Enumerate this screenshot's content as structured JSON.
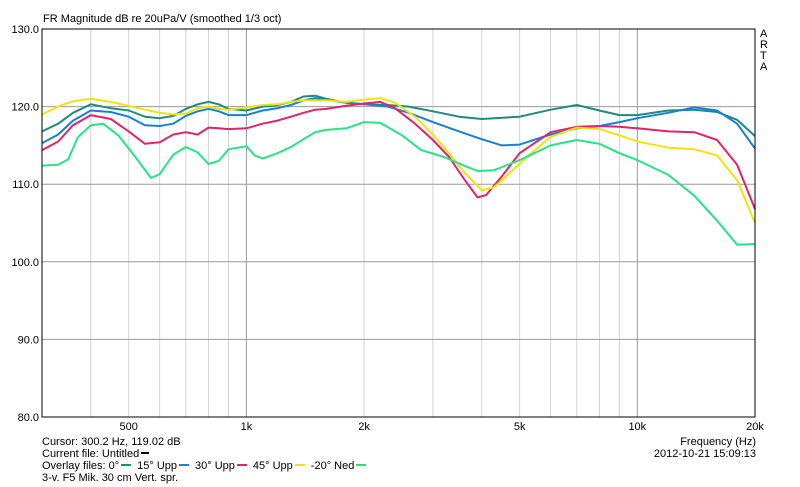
{
  "title": "FR Magnitude dB re 20uPa/V (smoothed 1/3 oct)",
  "brand": [
    "A",
    "R",
    "T",
    "A"
  ],
  "cursor_text": "Cursor: 300.2 Hz, 119.02 dB",
  "current_file_text": "Current file: Untitled",
  "overlay_label": "Overlay files:",
  "comment": "3-v. F5 Mik. 30 cm Vert. spr.",
  "x_axis_label": "Frequency (Hz)",
  "timestamp": "2012-10-21  15:09:13",
  "chart_data": {
    "type": "line",
    "title": "FR Magnitude dB re 20uPa/V (smoothed 1/3 oct)",
    "xlabel": "Frequency (Hz)",
    "ylabel": "",
    "xscale": "log",
    "xlim": [
      300,
      20000
    ],
    "ylim": [
      80,
      130
    ],
    "grid": true,
    "xticks": [
      {
        "value": 500,
        "label": "500"
      },
      {
        "value": 1000,
        "label": "1k"
      },
      {
        "value": 2000,
        "label": "2k"
      },
      {
        "value": 5000,
        "label": "5k"
      },
      {
        "value": 10000,
        "label": "10k"
      },
      {
        "value": 20000,
        "label": "20k"
      }
    ],
    "yticks": [
      {
        "value": 80,
        "label": "80.0"
      },
      {
        "value": 90,
        "label": "90.0"
      },
      {
        "value": 100,
        "label": "100.0"
      },
      {
        "value": 110,
        "label": "110.0"
      },
      {
        "value": 120,
        "label": "120.0"
      },
      {
        "value": 130,
        "label": "130.0"
      }
    ],
    "series": [
      {
        "name": "0°",
        "color": "#1f8b7d",
        "points": [
          [
            300,
            116.8
          ],
          [
            330,
            117.8
          ],
          [
            360,
            119.2
          ],
          [
            400,
            120.3
          ],
          [
            450,
            119.8
          ],
          [
            500,
            119.5
          ],
          [
            550,
            118.7
          ],
          [
            600,
            118.5
          ],
          [
            650,
            118.8
          ],
          [
            700,
            119.7
          ],
          [
            750,
            120.3
          ],
          [
            800,
            120.6
          ],
          [
            850,
            120.3
          ],
          [
            900,
            119.7
          ],
          [
            1000,
            119.5
          ],
          [
            1100,
            120.0
          ],
          [
            1200,
            120.2
          ],
          [
            1300,
            120.6
          ],
          [
            1400,
            121.3
          ],
          [
            1500,
            121.4
          ],
          [
            1600,
            121.0
          ],
          [
            1800,
            120.5
          ],
          [
            2000,
            120.3
          ],
          [
            2300,
            120.2
          ],
          [
            2600,
            120.0
          ],
          [
            3000,
            119.4
          ],
          [
            3500,
            118.7
          ],
          [
            4000,
            118.4
          ],
          [
            5000,
            118.7
          ],
          [
            6000,
            119.6
          ],
          [
            7000,
            120.2
          ],
          [
            8000,
            119.5
          ],
          [
            9000,
            118.9
          ],
          [
            10000,
            118.9
          ],
          [
            12000,
            119.5
          ],
          [
            14000,
            119.6
          ],
          [
            16000,
            119.3
          ],
          [
            18000,
            118.3
          ],
          [
            20000,
            116.2
          ]
        ]
      },
      {
        "name": "15° Upp",
        "color": "#1a7fd6",
        "points": [
          [
            300,
            115.3
          ],
          [
            330,
            116.4
          ],
          [
            360,
            118.2
          ],
          [
            400,
            119.5
          ],
          [
            450,
            119.3
          ],
          [
            500,
            118.7
          ],
          [
            550,
            117.6
          ],
          [
            600,
            117.5
          ],
          [
            650,
            117.8
          ],
          [
            700,
            118.8
          ],
          [
            750,
            119.4
          ],
          [
            800,
            119.7
          ],
          [
            850,
            119.4
          ],
          [
            900,
            118.9
          ],
          [
            1000,
            118.9
          ],
          [
            1100,
            119.5
          ],
          [
            1200,
            119.8
          ],
          [
            1300,
            120.2
          ],
          [
            1400,
            120.8
          ],
          [
            1500,
            121.1
          ],
          [
            1600,
            120.9
          ],
          [
            1800,
            120.5
          ],
          [
            2000,
            120.3
          ],
          [
            2300,
            120.0
          ],
          [
            2600,
            119.2
          ],
          [
            3000,
            118.0
          ],
          [
            3500,
            116.8
          ],
          [
            4000,
            115.8
          ],
          [
            4500,
            115.0
          ],
          [
            5000,
            115.1
          ],
          [
            6000,
            116.4
          ],
          [
            7000,
            117.2
          ],
          [
            8000,
            117.5
          ],
          [
            9000,
            118.0
          ],
          [
            10000,
            118.5
          ],
          [
            12000,
            119.2
          ],
          [
            14000,
            119.9
          ],
          [
            16000,
            119.5
          ],
          [
            18000,
            117.8
          ],
          [
            20000,
            114.6
          ]
        ]
      },
      {
        "name": "30° Upp",
        "color": "#e0246b",
        "points": [
          [
            300,
            114.4
          ],
          [
            330,
            115.5
          ],
          [
            360,
            117.6
          ],
          [
            400,
            118.9
          ],
          [
            450,
            118.4
          ],
          [
            500,
            116.8
          ],
          [
            550,
            115.2
          ],
          [
            600,
            115.4
          ],
          [
            650,
            116.4
          ],
          [
            700,
            116.7
          ],
          [
            750,
            116.4
          ],
          [
            800,
            117.3
          ],
          [
            850,
            117.2
          ],
          [
            900,
            117.1
          ],
          [
            1000,
            117.2
          ],
          [
            1100,
            117.8
          ],
          [
            1200,
            118.2
          ],
          [
            1300,
            118.7
          ],
          [
            1400,
            119.2
          ],
          [
            1500,
            119.6
          ],
          [
            1600,
            119.7
          ],
          [
            1800,
            120.1
          ],
          [
            2000,
            120.4
          ],
          [
            2200,
            120.6
          ],
          [
            2400,
            119.8
          ],
          [
            2700,
            117.8
          ],
          [
            3000,
            115.7
          ],
          [
            3300,
            113.5
          ],
          [
            3600,
            110.7
          ],
          [
            3900,
            108.3
          ],
          [
            4100,
            108.6
          ],
          [
            4500,
            111.0
          ],
          [
            5000,
            114.0
          ],
          [
            6000,
            116.7
          ],
          [
            7000,
            117.4
          ],
          [
            8000,
            117.5
          ],
          [
            9000,
            117.4
          ],
          [
            10000,
            117.2
          ],
          [
            12000,
            116.8
          ],
          [
            14000,
            116.7
          ],
          [
            16000,
            115.7
          ],
          [
            18000,
            112.5
          ],
          [
            20000,
            106.8
          ]
        ]
      },
      {
        "name": "45° Upp",
        "color": "#f2e30f",
        "points": [
          [
            300,
            119.0
          ],
          [
            330,
            120.0
          ],
          [
            360,
            120.7
          ],
          [
            400,
            121.0
          ],
          [
            450,
            120.6
          ],
          [
            500,
            120.1
          ],
          [
            550,
            119.6
          ],
          [
            600,
            119.2
          ],
          [
            650,
            119.0
          ],
          [
            700,
            119.1
          ],
          [
            750,
            119.8
          ],
          [
            800,
            120.0
          ],
          [
            850,
            119.7
          ],
          [
            900,
            119.6
          ],
          [
            1000,
            119.9
          ],
          [
            1100,
            120.2
          ],
          [
            1200,
            120.3
          ],
          [
            1300,
            120.6
          ],
          [
            1400,
            120.8
          ],
          [
            1500,
            120.8
          ],
          [
            1600,
            120.8
          ],
          [
            1800,
            120.6
          ],
          [
            2000,
            120.9
          ],
          [
            2200,
            121.1
          ],
          [
            2400,
            120.5
          ],
          [
            2700,
            118.7
          ],
          [
            3000,
            116.4
          ],
          [
            3300,
            114.0
          ],
          [
            3600,
            111.6
          ],
          [
            4000,
            109.2
          ],
          [
            4300,
            109.6
          ],
          [
            4800,
            111.8
          ],
          [
            5300,
            113.8
          ],
          [
            6000,
            116.1
          ],
          [
            7000,
            117.3
          ],
          [
            8000,
            117.1
          ],
          [
            9000,
            116.3
          ],
          [
            10000,
            115.5
          ],
          [
            12000,
            114.7
          ],
          [
            14000,
            114.5
          ],
          [
            16000,
            113.7
          ],
          [
            18000,
            110.5
          ],
          [
            20000,
            105.0
          ]
        ]
      },
      {
        "name": "-20° Ned",
        "color": "#28e384",
        "points": [
          [
            300,
            112.4
          ],
          [
            330,
            112.5
          ],
          [
            350,
            113.2
          ],
          [
            370,
            116.0
          ],
          [
            400,
            117.6
          ],
          [
            430,
            117.8
          ],
          [
            470,
            116.3
          ],
          [
            520,
            113.5
          ],
          [
            570,
            110.8
          ],
          [
            600,
            111.3
          ],
          [
            650,
            113.8
          ],
          [
            700,
            114.8
          ],
          [
            750,
            114.1
          ],
          [
            800,
            112.6
          ],
          [
            850,
            113.0
          ],
          [
            900,
            114.5
          ],
          [
            1000,
            114.9
          ],
          [
            1050,
            113.7
          ],
          [
            1100,
            113.3
          ],
          [
            1200,
            114.0
          ],
          [
            1300,
            114.8
          ],
          [
            1400,
            115.8
          ],
          [
            1500,
            116.7
          ],
          [
            1600,
            117.0
          ],
          [
            1800,
            117.2
          ],
          [
            2000,
            118.0
          ],
          [
            2200,
            117.9
          ],
          [
            2500,
            116.3
          ],
          [
            2800,
            114.4
          ],
          [
            3200,
            113.5
          ],
          [
            3600,
            112.4
          ],
          [
            3900,
            111.7
          ],
          [
            4300,
            111.8
          ],
          [
            5000,
            113.1
          ],
          [
            6000,
            115.0
          ],
          [
            7000,
            115.7
          ],
          [
            8000,
            115.2
          ],
          [
            9000,
            114.0
          ],
          [
            10000,
            113.1
          ],
          [
            12000,
            111.2
          ],
          [
            14000,
            108.5
          ],
          [
            16000,
            105.3
          ],
          [
            18000,
            102.2
          ],
          [
            20000,
            102.3
          ]
        ]
      }
    ]
  }
}
